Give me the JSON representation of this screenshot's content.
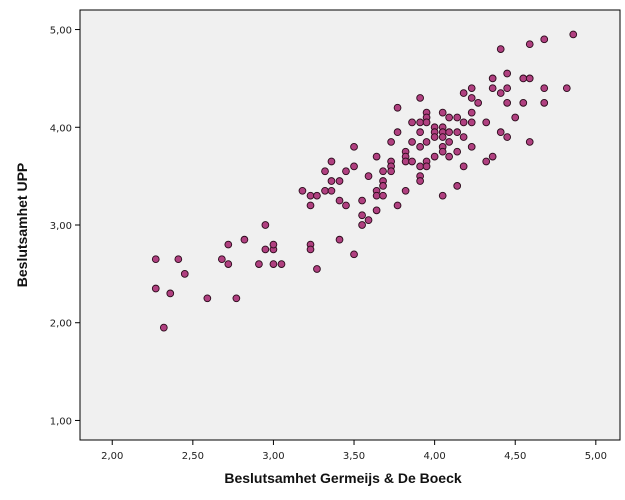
{
  "chart_data": {
    "type": "scatter",
    "title": "",
    "xlabel": "Beslutsamhet Germeijs & De Boeck",
    "ylabel": "Beslutsamhet UPP",
    "xlim": [
      1.8,
      5.15
    ],
    "ylim": [
      0.8,
      5.2
    ],
    "xticks": [
      "2,00",
      "2,50",
      "3,00",
      "3,50",
      "4,00",
      "4,50",
      "5,00"
    ],
    "yticks": [
      "1,00",
      "2,00",
      "3,00",
      "4,00",
      "5,00"
    ],
    "grid": false,
    "plot_background": "#f0f0f0",
    "marker_fill": "#b04080",
    "marker_stroke": "#2a0a1a",
    "points": [
      [
        2.27,
        2.65
      ],
      [
        2.27,
        2.35
      ],
      [
        2.32,
        1.95
      ],
      [
        2.36,
        2.3
      ],
      [
        2.41,
        2.65
      ],
      [
        2.45,
        2.5
      ],
      [
        2.59,
        2.25
      ],
      [
        2.68,
        2.65
      ],
      [
        2.72,
        2.8
      ],
      [
        2.72,
        2.6
      ],
      [
        2.77,
        2.25
      ],
      [
        2.82,
        2.85
      ],
      [
        2.91,
        2.6
      ],
      [
        2.95,
        3.0
      ],
      [
        2.95,
        2.75
      ],
      [
        3.0,
        2.75
      ],
      [
        3.0,
        2.8
      ],
      [
        3.0,
        2.6
      ],
      [
        3.05,
        2.6
      ],
      [
        3.18,
        3.35
      ],
      [
        3.23,
        3.3
      ],
      [
        3.23,
        3.2
      ],
      [
        3.23,
        2.8
      ],
      [
        3.23,
        2.75
      ],
      [
        3.27,
        3.3
      ],
      [
        3.27,
        2.55
      ],
      [
        3.32,
        3.55
      ],
      [
        3.32,
        3.35
      ],
      [
        3.36,
        3.65
      ],
      [
        3.36,
        3.45
      ],
      [
        3.36,
        3.35
      ],
      [
        3.41,
        3.45
      ],
      [
        3.41,
        3.25
      ],
      [
        3.41,
        2.85
      ],
      [
        3.45,
        3.55
      ],
      [
        3.45,
        3.2
      ],
      [
        3.5,
        3.8
      ],
      [
        3.5,
        3.6
      ],
      [
        3.5,
        2.7
      ],
      [
        3.55,
        3.25
      ],
      [
        3.55,
        3.1
      ],
      [
        3.55,
        3.0
      ],
      [
        3.59,
        3.5
      ],
      [
        3.59,
        3.05
      ],
      [
        3.64,
        3.7
      ],
      [
        3.64,
        3.35
      ],
      [
        3.64,
        3.3
      ],
      [
        3.64,
        3.15
      ],
      [
        3.68,
        3.55
      ],
      [
        3.68,
        3.45
      ],
      [
        3.68,
        3.4
      ],
      [
        3.68,
        3.3
      ],
      [
        3.73,
        3.85
      ],
      [
        3.73,
        3.65
      ],
      [
        3.73,
        3.6
      ],
      [
        3.73,
        3.55
      ],
      [
        3.77,
        4.2
      ],
      [
        3.77,
        3.95
      ],
      [
        3.77,
        3.2
      ],
      [
        3.82,
        3.75
      ],
      [
        3.82,
        3.7
      ],
      [
        3.82,
        3.65
      ],
      [
        3.82,
        3.35
      ],
      [
        3.86,
        4.05
      ],
      [
        3.86,
        3.85
      ],
      [
        3.86,
        3.65
      ],
      [
        3.91,
        4.3
      ],
      [
        3.91,
        4.05
      ],
      [
        3.91,
        3.95
      ],
      [
        3.91,
        3.8
      ],
      [
        3.91,
        3.6
      ],
      [
        3.91,
        3.5
      ],
      [
        3.91,
        3.45
      ],
      [
        3.95,
        4.15
      ],
      [
        3.95,
        4.1
      ],
      [
        3.95,
        4.05
      ],
      [
        3.95,
        3.85
      ],
      [
        3.95,
        3.65
      ],
      [
        3.95,
        3.6
      ],
      [
        4.0,
        4.0
      ],
      [
        4.0,
        3.95
      ],
      [
        4.0,
        3.9
      ],
      [
        4.0,
        3.7
      ],
      [
        4.05,
        4.15
      ],
      [
        4.05,
        4.0
      ],
      [
        4.05,
        3.95
      ],
      [
        4.05,
        3.9
      ],
      [
        4.05,
        3.8
      ],
      [
        4.05,
        3.75
      ],
      [
        4.05,
        3.3
      ],
      [
        4.09,
        4.1
      ],
      [
        4.09,
        3.95
      ],
      [
        4.09,
        3.85
      ],
      [
        4.09,
        3.7
      ],
      [
        4.14,
        4.1
      ],
      [
        4.14,
        3.95
      ],
      [
        4.14,
        3.75
      ],
      [
        4.14,
        3.4
      ],
      [
        4.18,
        4.35
      ],
      [
        4.18,
        4.05
      ],
      [
        4.18,
        3.9
      ],
      [
        4.18,
        3.6
      ],
      [
        4.23,
        4.4
      ],
      [
        4.23,
        4.3
      ],
      [
        4.23,
        4.15
      ],
      [
        4.23,
        4.05
      ],
      [
        4.23,
        3.8
      ],
      [
        4.27,
        4.25
      ],
      [
        4.32,
        4.05
      ],
      [
        4.32,
        3.65
      ],
      [
        4.36,
        4.5
      ],
      [
        4.36,
        4.4
      ],
      [
        4.36,
        3.7
      ],
      [
        4.41,
        4.8
      ],
      [
        4.41,
        4.35
      ],
      [
        4.41,
        3.95
      ],
      [
        4.45,
        4.55
      ],
      [
        4.45,
        4.4
      ],
      [
        4.45,
        4.25
      ],
      [
        4.45,
        3.9
      ],
      [
        4.5,
        4.1
      ],
      [
        4.55,
        4.5
      ],
      [
        4.55,
        4.25
      ],
      [
        4.59,
        4.85
      ],
      [
        4.59,
        4.5
      ],
      [
        4.59,
        3.85
      ],
      [
        4.68,
        4.9
      ],
      [
        4.68,
        4.4
      ],
      [
        4.68,
        4.25
      ],
      [
        4.82,
        4.4
      ],
      [
        4.86,
        4.95
      ]
    ]
  }
}
